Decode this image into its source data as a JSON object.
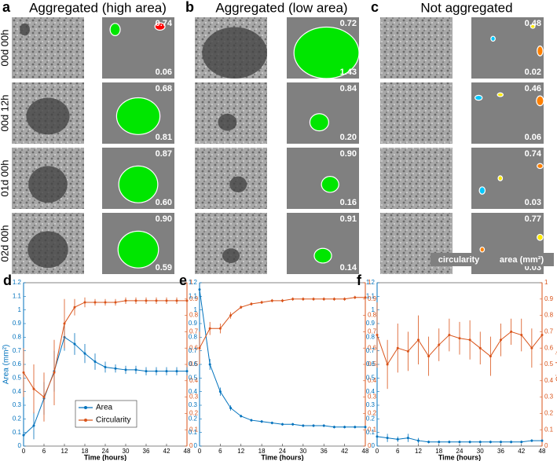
{
  "panels": [
    {
      "letter": "a",
      "title": "Aggregated (high area)",
      "cells": [
        {
          "circularity": "0.74",
          "area": "0.06"
        },
        {
          "circularity": "0.68",
          "area": "0.81"
        },
        {
          "circularity": "0.87",
          "area": "0.60"
        },
        {
          "circularity": "0.90",
          "area": "0.59"
        }
      ]
    },
    {
      "letter": "b",
      "title": "Aggregated (low area)",
      "cells": [
        {
          "circularity": "0.72",
          "area": "1.43"
        },
        {
          "circularity": "0.84",
          "area": "0.20"
        },
        {
          "circularity": "0.90",
          "area": "0.16"
        },
        {
          "circularity": "0.91",
          "area": "0.14"
        }
      ]
    },
    {
      "letter": "c",
      "title": "Not aggregated",
      "cells": [
        {
          "circularity": "0.48",
          "area": "0.02"
        },
        {
          "circularity": "0.46",
          "area": "0.06"
        },
        {
          "circularity": "0.74",
          "area": "0.03"
        },
        {
          "circularity": "0.77",
          "area": "0.03"
        }
      ]
    }
  ],
  "rows": [
    "00d 00h",
    "00d 12h",
    "01d 00h",
    "02d 00h"
  ],
  "key": {
    "circularity": "circularity",
    "area": "area (mm²)"
  },
  "chart_data": [
    {
      "type": "line",
      "title": "d",
      "xlabel": "Time (hours)",
      "ylabel": "Area (mm²)",
      "legend": "south",
      "x": [
        0,
        3,
        6,
        9,
        12,
        15,
        18,
        21,
        24,
        27,
        30,
        33,
        36,
        39,
        42,
        45,
        48
      ],
      "xlim": [
        0,
        48
      ],
      "xticks": [
        0,
        6,
        12,
        18,
        24,
        30,
        36,
        42,
        48
      ],
      "ylim": [
        0,
        1.2
      ],
      "yticks": [
        0,
        0.1,
        0.2,
        0.3,
        0.4,
        0.5,
        0.6,
        0.7,
        0.8,
        0.9,
        1,
        1.1,
        1.2
      ],
      "y2lim": [
        0,
        1
      ],
      "y2ticks": [
        0,
        0.1,
        0.2,
        0.3,
        0.4,
        0.5,
        0.6,
        0.7,
        0.8,
        0.9,
        1
      ],
      "series": [
        {
          "name": "Area",
          "color": "#0072bd",
          "values": [
            0.08,
            0.15,
            0.35,
            0.55,
            0.8,
            0.75,
            0.68,
            0.62,
            0.58,
            0.57,
            0.56,
            0.56,
            0.55,
            0.55,
            0.55,
            0.55,
            0.55
          ],
          "errors": [
            0.08,
            0.1,
            0.12,
            0.15,
            0.1,
            0.08,
            0.07,
            0.06,
            0.04,
            0.03,
            0.03,
            0.03,
            0.03,
            0.03,
            0.03,
            0.03,
            0.03
          ]
        },
        {
          "name": "Circularity",
          "color": "#d95319",
          "axis": "y2",
          "values": [
            0.45,
            0.35,
            0.3,
            0.45,
            0.75,
            0.85,
            0.88,
            0.88,
            0.88,
            0.88,
            0.89,
            0.89,
            0.89,
            0.89,
            0.89,
            0.89,
            0.89
          ],
          "errors": [
            0.15,
            0.15,
            0.15,
            0.2,
            0.15,
            0.05,
            0.03,
            0.02,
            0.02,
            0.02,
            0.02,
            0.02,
            0.02,
            0.02,
            0.02,
            0.02,
            0.02
          ]
        }
      ]
    },
    {
      "type": "line",
      "title": "e",
      "xlabel": "Time (hours)",
      "x": [
        0,
        3,
        6,
        9,
        12,
        15,
        18,
        21,
        24,
        27,
        30,
        33,
        36,
        39,
        42,
        45,
        48
      ],
      "xlim": [
        0,
        48
      ],
      "xticks": [
        0,
        6,
        12,
        18,
        24,
        30,
        36,
        42,
        48
      ],
      "ylim": [
        0,
        1.2
      ],
      "yticks": [
        0,
        0.1,
        0.2,
        0.3,
        0.4,
        0.5,
        0.6,
        0.7,
        0.8,
        0.9,
        1,
        1.1,
        1.2
      ],
      "y2lim": [
        0,
        1
      ],
      "y2ticks": [
        0,
        0.1,
        0.2,
        0.3,
        0.4,
        0.5,
        0.6,
        0.7,
        0.8,
        0.9,
        1
      ],
      "series": [
        {
          "color": "#0072bd",
          "values": [
            1.15,
            0.6,
            0.4,
            0.28,
            0.22,
            0.19,
            0.18,
            0.17,
            0.16,
            0.16,
            0.15,
            0.15,
            0.15,
            0.14,
            0.14,
            0.14,
            0.14
          ],
          "errors": [
            0.05,
            0.04,
            0.03,
            0.02,
            0.01,
            0.01,
            0.01,
            0.01,
            0.01,
            0.01,
            0.01,
            0.01,
            0.01,
            0.01,
            0.01,
            0.01,
            0.01
          ]
        },
        {
          "color": "#d95319",
          "axis": "y2",
          "values": [
            0.6,
            0.72,
            0.72,
            0.8,
            0.85,
            0.87,
            0.88,
            0.89,
            0.89,
            0.9,
            0.9,
            0.9,
            0.9,
            0.9,
            0.9,
            0.91,
            0.91
          ],
          "errors": [
            0.1,
            0.04,
            0.03,
            0.02,
            0.01,
            0.01,
            0.01,
            0.01,
            0.01,
            0.01,
            0.01,
            0.01,
            0.01,
            0.01,
            0.01,
            0.01,
            0.01
          ]
        }
      ]
    },
    {
      "type": "line",
      "title": "f",
      "xlabel": "Time (hours)",
      "y2label": "Circularity",
      "x": [
        0,
        3,
        6,
        9,
        12,
        15,
        18,
        21,
        24,
        27,
        30,
        33,
        36,
        39,
        42,
        45,
        48
      ],
      "xlim": [
        0,
        48
      ],
      "xticks": [
        0,
        6,
        12,
        18,
        24,
        30,
        36,
        42,
        48
      ],
      "ylim": [
        0,
        1.2
      ],
      "yticks": [
        0,
        0.1,
        0.2,
        0.3,
        0.4,
        0.5,
        0.6,
        0.7,
        0.8,
        0.9,
        1,
        1.1,
        1.2
      ],
      "y2lim": [
        0,
        1
      ],
      "y2ticks": [
        0,
        0.1,
        0.2,
        0.3,
        0.4,
        0.5,
        0.6,
        0.7,
        0.8,
        0.9,
        1
      ],
      "series": [
        {
          "color": "#0072bd",
          "values": [
            0.07,
            0.06,
            0.05,
            0.06,
            0.04,
            0.03,
            0.03,
            0.03,
            0.03,
            0.03,
            0.03,
            0.03,
            0.03,
            0.03,
            0.03,
            0.04,
            0.04
          ],
          "errors": [
            0.03,
            0.03,
            0.02,
            0.03,
            0.02,
            0.01,
            0.01,
            0.01,
            0.01,
            0.01,
            0.01,
            0.01,
            0.01,
            0.01,
            0.01,
            0.01,
            0.01
          ]
        },
        {
          "color": "#d95319",
          "axis": "y2",
          "values": [
            0.68,
            0.5,
            0.6,
            0.58,
            0.65,
            0.55,
            0.62,
            0.68,
            0.66,
            0.65,
            0.6,
            0.55,
            0.65,
            0.7,
            0.68,
            0.6,
            0.68
          ],
          "errors": [
            0.2,
            0.15,
            0.15,
            0.12,
            0.15,
            0.12,
            0.1,
            0.1,
            0.1,
            0.12,
            0.1,
            0.12,
            0.1,
            0.08,
            0.1,
            0.12,
            0.1
          ]
        }
      ]
    }
  ]
}
